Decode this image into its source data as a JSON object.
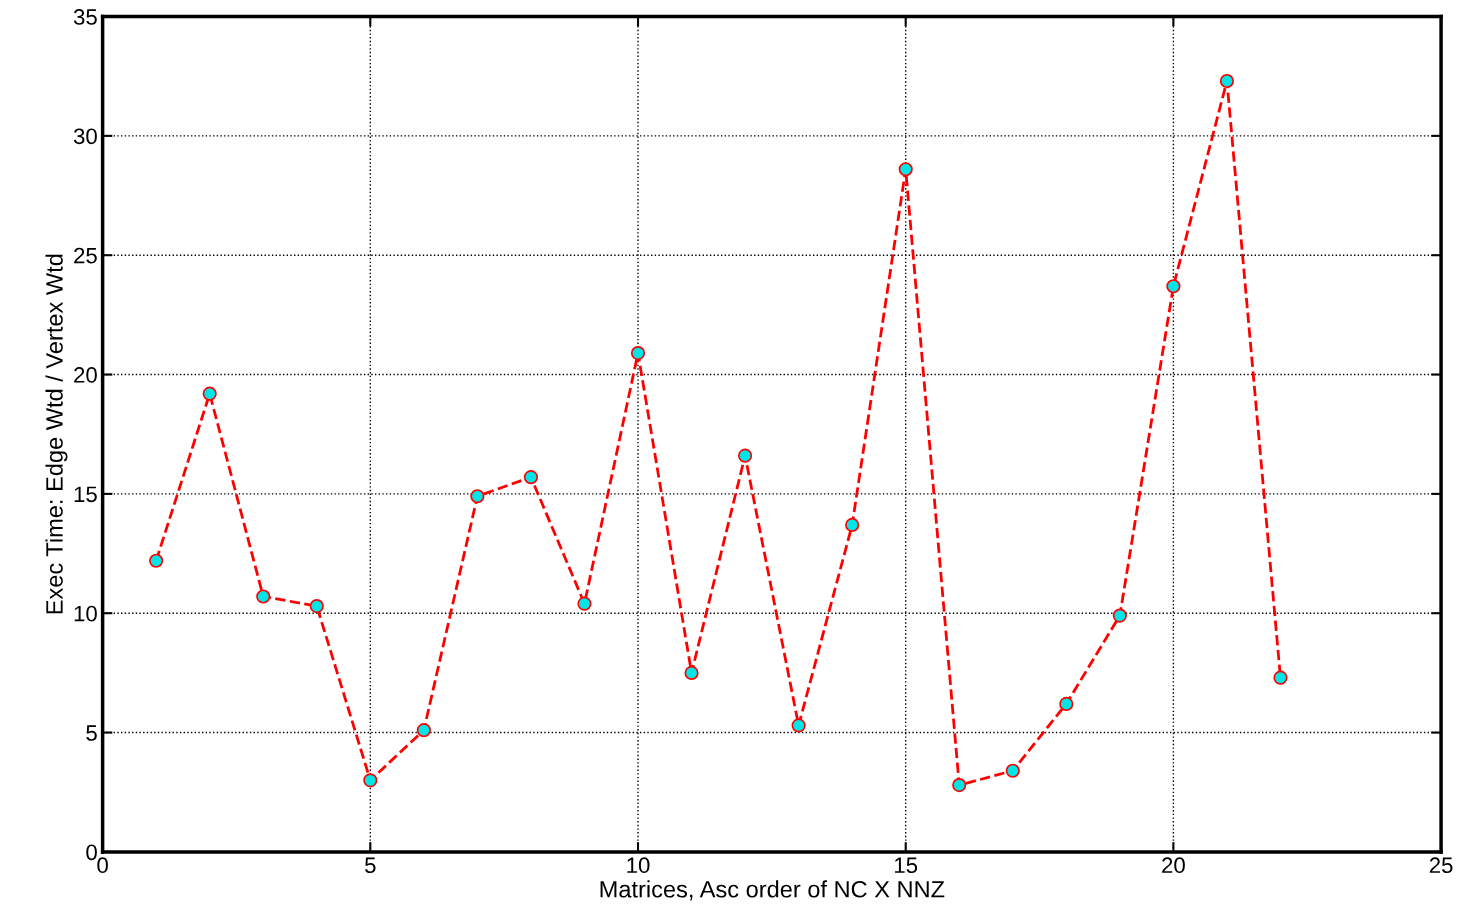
{
  "chart_data": {
    "type": "line",
    "xlabel": "Matrices, Asc order of NC X NNZ",
    "ylabel": "Exec Time: Edge Wtd / Vertex Wtd",
    "x": [
      1,
      2,
      3,
      4,
      5,
      6,
      7,
      8,
      9,
      10,
      11,
      12,
      13,
      14,
      15,
      16,
      17,
      18,
      19,
      20,
      21,
      22
    ],
    "series": [
      {
        "color": "#ff0000",
        "values": [
          12.2,
          19.2,
          10.7,
          10.3,
          3.0,
          5.1,
          14.9,
          15.7,
          10.4,
          20.9,
          7.5,
          16.6,
          5.3,
          13.7,
          28.6,
          2.8,
          3.4,
          6.2,
          9.9,
          23.7,
          32.3,
          7.3
        ]
      }
    ],
    "xlim": [
      0,
      25
    ],
    "xticks": [
      0,
      5,
      10,
      15,
      20,
      25
    ],
    "ylim": [
      0,
      35
    ],
    "yticks": [
      0,
      5,
      10,
      15,
      20,
      25,
      30,
      35
    ],
    "grid": true,
    "marker": "circle",
    "line_style": "dashed",
    "legend": false
  }
}
